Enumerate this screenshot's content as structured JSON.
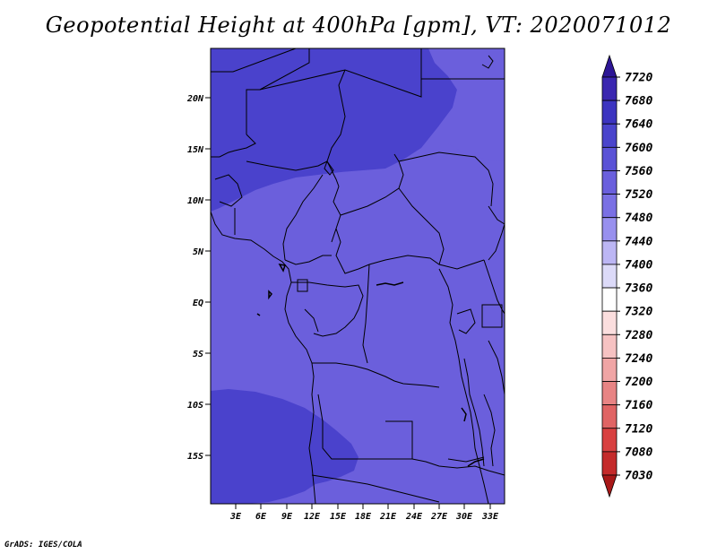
{
  "title": "Geopotential Height at 400hPa [gpm], VT: 2020071012",
  "credit": "GrADS: IGES/COLA",
  "map": {
    "lat_labels": [
      "20N",
      "15N",
      "10N",
      "5N",
      "EQ",
      "5S",
      "10S",
      "15S"
    ],
    "lon_labels": [
      "3E",
      "6E",
      "9E",
      "12E",
      "15E",
      "18E",
      "21E",
      "24E",
      "27E",
      "30E",
      "33E"
    ]
  },
  "colorbar": {
    "levels": [
      "7720",
      "7680",
      "7640",
      "7600",
      "7560",
      "7520",
      "7480",
      "7440",
      "7400",
      "7360",
      "7320",
      "7280",
      "7240",
      "7200",
      "7160",
      "7120",
      "7080",
      "7030"
    ],
    "colors": [
      "#2d1696",
      "#3a26b0",
      "#3c34c0",
      "#4a44cc",
      "#5a52d6",
      "#6a5fdd",
      "#7a70e4",
      "#9890ee",
      "#bcb6f4",
      "#dcdaf8",
      "#ffffff",
      "#fbdede",
      "#f6c2c2",
      "#f0a5a5",
      "#e88484",
      "#e06464",
      "#d84040",
      "#c42a2a",
      "#a81818"
    ]
  },
  "fields": {
    "colors": {
      "main": "#6b5fdc",
      "dark": "#4a42cc",
      "land_lines": "#000000"
    }
  }
}
